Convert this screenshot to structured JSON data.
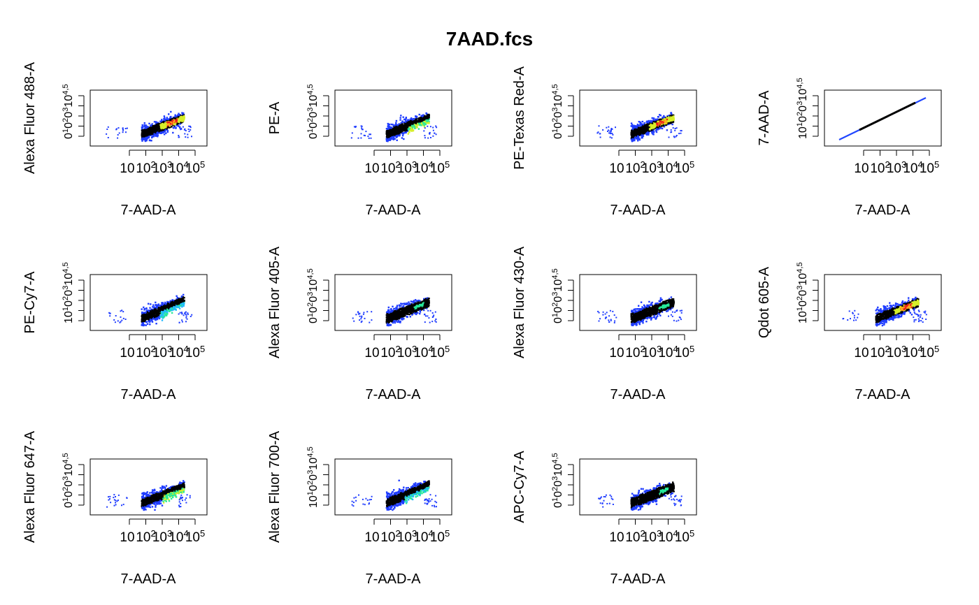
{
  "title": "7AAD.fcs",
  "colors": {
    "density": [
      "#000000",
      "#1f3cff",
      "#21b8ff",
      "#27e89a",
      "#d6ef2a",
      "#ffb21a",
      "#e81c1c"
    ],
    "line_blue": "#2046ff"
  },
  "chart_data": [
    {
      "type": "scatter",
      "xlabel": "7-AAD-A",
      "ylabel": "Alexa Fluor 488-A",
      "x_scale": "log",
      "x_ticks": [
        "10",
        "10^2",
        "10^3",
        "10^4",
        "10^5"
      ],
      "y_tick_text": "0^{1}0^{2}0^{3}10^{4,5}",
      "density": "hotspot"
    },
    {
      "type": "scatter",
      "xlabel": "7-AAD-A",
      "ylabel": "PE-A",
      "x_scale": "log",
      "x_ticks": [
        "10",
        "10^2",
        "10^3",
        "10^4",
        "10^5"
      ],
      "y_tick_text": "0^{1}0^{2}0^{3}10^{4,5}",
      "density": "mixed"
    },
    {
      "type": "scatter",
      "xlabel": "7-AAD-A",
      "ylabel": "PE-Texas Red-A",
      "x_scale": "log",
      "x_ticks": [
        "10",
        "10^2",
        "10^3",
        "10^4",
        "10^5"
      ],
      "y_tick_text": "0^{1}0^{2}0^{3}10^{4,5}",
      "density": "hotspot"
    },
    {
      "type": "scatter",
      "xlabel": "7-AAD-A",
      "ylabel": "7-AAD-A",
      "x_scale": "log",
      "x_ticks": [
        "10",
        "10^2",
        "10^3",
        "10^4",
        "10^5"
      ],
      "y_tick_text": "10^{1}0^{2}0^{3}10^{4,5}",
      "density": "diagonal"
    },
    {
      "type": "scatter",
      "xlabel": "7-AAD-A",
      "ylabel": "PE-Cy7-A",
      "x_scale": "log",
      "x_ticks": [
        "10",
        "10^2",
        "10^3",
        "10^4",
        "10^5"
      ],
      "y_tick_text": "10^{1}0^{2}0^{3}10^{4,5}",
      "density": "steep"
    },
    {
      "type": "scatter",
      "xlabel": "7-AAD-A",
      "ylabel": "Alexa Fluor 405-A",
      "x_scale": "log",
      "x_ticks": [
        "10",
        "10^2",
        "10^3",
        "10^4",
        "10^5"
      ],
      "y_tick_text": "0^{1}0^{2}0^{3}10^{4,5}",
      "density": "dark"
    },
    {
      "type": "scatter",
      "xlabel": "7-AAD-A",
      "ylabel": "Alexa Fluor 430-A",
      "x_scale": "log",
      "x_ticks": [
        "10",
        "10^2",
        "10^3",
        "10^4",
        "10^5"
      ],
      "y_tick_text": "0^{1}0^{2}0^{3}10^{4,5}",
      "density": "dark"
    },
    {
      "type": "scatter",
      "xlabel": "7-AAD-A",
      "ylabel": "Qdot 605-A",
      "x_scale": "log",
      "x_ticks": [
        "10",
        "10^2",
        "10^3",
        "10^4",
        "10^5"
      ],
      "y_tick_text": "10^{1}0^{2}0^{3}10^{4,5}",
      "density": "hotspot"
    },
    {
      "type": "scatter",
      "xlabel": "7-AAD-A",
      "ylabel": "Alexa Fluor 647-A",
      "x_scale": "log",
      "x_ticks": [
        "10",
        "10^2",
        "10^3",
        "10^4",
        "10^5"
      ],
      "y_tick_text": "0^{1}0^{2}0^{3}10^{4,5}",
      "density": "mixed"
    },
    {
      "type": "scatter",
      "xlabel": "7-AAD-A",
      "ylabel": "Alexa Fluor 700-A",
      "x_scale": "log",
      "x_ticks": [
        "10",
        "10^2",
        "10^3",
        "10^4",
        "10^5"
      ],
      "y_tick_text": "10^{1}0^{2}0^{3}10^{4,5}",
      "density": "steep"
    },
    {
      "type": "scatter",
      "xlabel": "7-AAD-A",
      "ylabel": "APC-Cy7-A",
      "x_scale": "log",
      "x_ticks": [
        "10",
        "10^2",
        "10^3",
        "10^4",
        "10^5"
      ],
      "y_tick_text": "0^{1}0^{2}0^{3}10^{4,5}",
      "density": "dark"
    }
  ]
}
